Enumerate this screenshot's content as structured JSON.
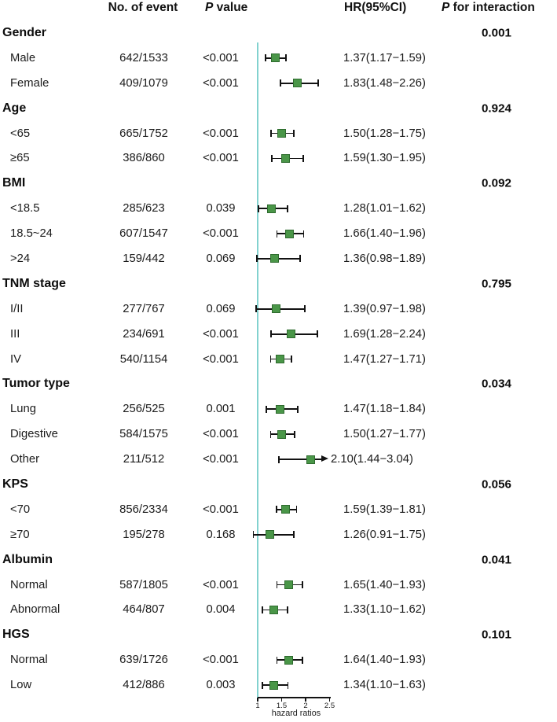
{
  "header": {
    "col_event": "No. of event",
    "p": "P",
    "p_value_rest": " value",
    "col_hr": "HR(95%CI)",
    "p_int_rest": " for interaction"
  },
  "colors": {
    "marker": "#4a9648",
    "marker_border": "#2e6b2e",
    "ref_line": "#82d2cf",
    "ci_line": "#121212"
  },
  "chart_data": {
    "type": "scatter",
    "variant": "forest-plot",
    "xlabel": "hazard ratios",
    "xlim": [
      1,
      2.5
    ],
    "x_ticks": [
      1,
      1.5,
      2,
      2.5
    ],
    "x_tick_labels": [
      "1",
      "1.5",
      "2",
      "2.5"
    ],
    "ref_line_x": 1,
    "columns": [
      "No. of event",
      "P value",
      "HR(95%CI)",
      "P for interaction"
    ],
    "groups": [
      {
        "name": "Gender",
        "p_interaction": "0.001",
        "items": [
          {
            "label": "Male",
            "events": "642/1533",
            "p": "<0.001",
            "hr": 1.37,
            "ci": [
              1.17,
              1.59
            ],
            "hr_text": "1.37(1.17−1.59)"
          },
          {
            "label": "Female",
            "events": "409/1079",
            "p": "<0.001",
            "hr": 1.83,
            "ci": [
              1.48,
              2.26
            ],
            "hr_text": "1.83(1.48−2.26)"
          }
        ]
      },
      {
        "name": "Age",
        "p_interaction": "0.924",
        "items": [
          {
            "label": "<65",
            "events": "665/1752",
            "p": "<0.001",
            "hr": 1.5,
            "ci": [
              1.28,
              1.75
            ],
            "hr_text": "1.50(1.28−1.75)"
          },
          {
            "label": "≥65",
            "events": "386/860",
            "p": "<0.001",
            "hr": 1.59,
            "ci": [
              1.3,
              1.95
            ],
            "hr_text": "1.59(1.30−1.95)"
          }
        ]
      },
      {
        "name": "BMI",
        "p_interaction": "0.092",
        "items": [
          {
            "label": "<18.5",
            "events": "285/623",
            "p": "0.039",
            "hr": 1.28,
            "ci": [
              1.01,
              1.62
            ],
            "hr_text": "1.28(1.01−1.62)"
          },
          {
            "label": "18.5~24",
            "events": "607/1547",
            "p": "<0.001",
            "hr": 1.66,
            "ci": [
              1.4,
              1.96
            ],
            "hr_text": "1.66(1.40−1.96)"
          },
          {
            "label": ">24",
            "events": "159/442",
            "p": "0.069",
            "hr": 1.36,
            "ci": [
              0.98,
              1.89
            ],
            "hr_text": "1.36(0.98−1.89)"
          }
        ]
      },
      {
        "name": "TNM  stage",
        "p_interaction": "0.795",
        "items": [
          {
            "label": "I/II",
            "events": "277/767",
            "p": "0.069",
            "hr": 1.39,
            "ci": [
              0.97,
              1.98
            ],
            "hr_text": "1.39(0.97−1.98)"
          },
          {
            "label": "III",
            "events": "234/691",
            "p": "<0.001",
            "hr": 1.69,
            "ci": [
              1.28,
              2.24
            ],
            "hr_text": "1.69(1.28−2.24)"
          },
          {
            "label": "IV",
            "events": "540/1154",
            "p": "<0.001",
            "hr": 1.47,
            "ci": [
              1.27,
              1.71
            ],
            "hr_text": "1.47(1.27−1.71)"
          }
        ]
      },
      {
        "name": "Tumor  type",
        "p_interaction": "0.034",
        "items": [
          {
            "label": "Lung",
            "events": "256/525",
            "p": "0.001",
            "hr": 1.47,
            "ci": [
              1.18,
              1.84
            ],
            "hr_text": "1.47(1.18−1.84)"
          },
          {
            "label": "Digestive",
            "events": "584/1575",
            "p": "<0.001",
            "hr": 1.5,
            "ci": [
              1.27,
              1.77
            ],
            "hr_text": "1.50(1.27−1.77)"
          },
          {
            "label": "Other",
            "events": "211/512",
            "p": "<0.001",
            "hr": 2.1,
            "ci": [
              1.44,
              3.04
            ],
            "hr_text": "2.10(1.44−3.04)"
          }
        ]
      },
      {
        "name": "KPS",
        "p_interaction": "0.056",
        "items": [
          {
            "label": "<70",
            "events": "856/2334",
            "p": "<0.001",
            "hr": 1.59,
            "ci": [
              1.39,
              1.81
            ],
            "hr_text": "1.59(1.39−1.81)"
          },
          {
            "label": "≥70",
            "events": "195/278",
            "p": "0.168",
            "hr": 1.26,
            "ci": [
              0.91,
              1.75
            ],
            "hr_text": "1.26(0.91−1.75)"
          }
        ]
      },
      {
        "name": "Albumin",
        "p_interaction": "0.041",
        "items": [
          {
            "label": "Normal",
            "events": "587/1805",
            "p": "<0.001",
            "hr": 1.65,
            "ci": [
              1.4,
              1.93
            ],
            "hr_text": "1.65(1.40−1.93)"
          },
          {
            "label": "Abnormal",
            "events": "464/807",
            "p": "0.004",
            "hr": 1.33,
            "ci": [
              1.1,
              1.62
            ],
            "hr_text": "1.33(1.10−1.62)"
          }
        ]
      },
      {
        "name": "HGS",
        "p_interaction": "0.101",
        "items": [
          {
            "label": "Normal",
            "events": "639/1726",
            "p": "<0.001",
            "hr": 1.64,
            "ci": [
              1.4,
              1.93
            ],
            "hr_text": "1.64(1.40−1.93)"
          },
          {
            "label": "Low",
            "events": "412/886",
            "p": "0.003",
            "hr": 1.34,
            "ci": [
              1.1,
              1.63
            ],
            "hr_text": "1.34(1.10−1.63)"
          }
        ]
      }
    ]
  }
}
